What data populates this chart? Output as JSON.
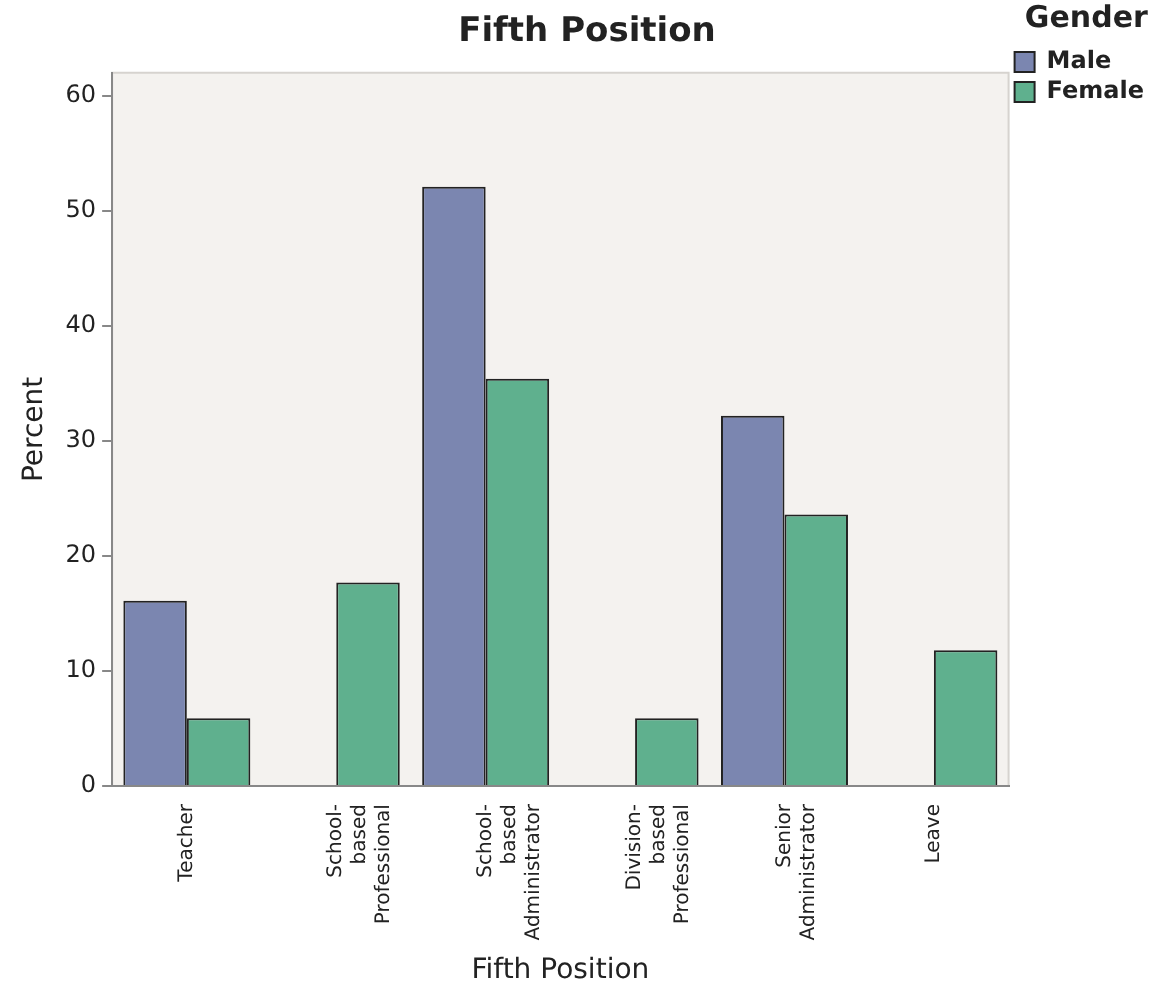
{
  "chart_data": {
    "type": "bar",
    "title": "Fifth Position",
    "xlabel": "Fifth Position",
    "ylabel": "Percent",
    "legend_title": "Gender",
    "categories": [
      "Teacher",
      "School-\nbased\nProfessional",
      "School-\nbased\nAdministrator",
      "Division-\nbased\nProfessional",
      "Senior\nAdministrator",
      "Leave"
    ],
    "series": [
      {
        "name": "Male",
        "color": "#7b86b0",
        "values": [
          16.1,
          0,
          52.1,
          0,
          32.2,
          0
        ]
      },
      {
        "name": "Female",
        "color": "#5fb08e",
        "values": [
          5.9,
          17.7,
          35.4,
          5.9,
          23.6,
          11.8
        ]
      }
    ],
    "ylim": [
      0,
      62
    ],
    "yticks": [
      0,
      10,
      20,
      30,
      40,
      50,
      60
    ],
    "grid": false,
    "legend": "top right"
  }
}
